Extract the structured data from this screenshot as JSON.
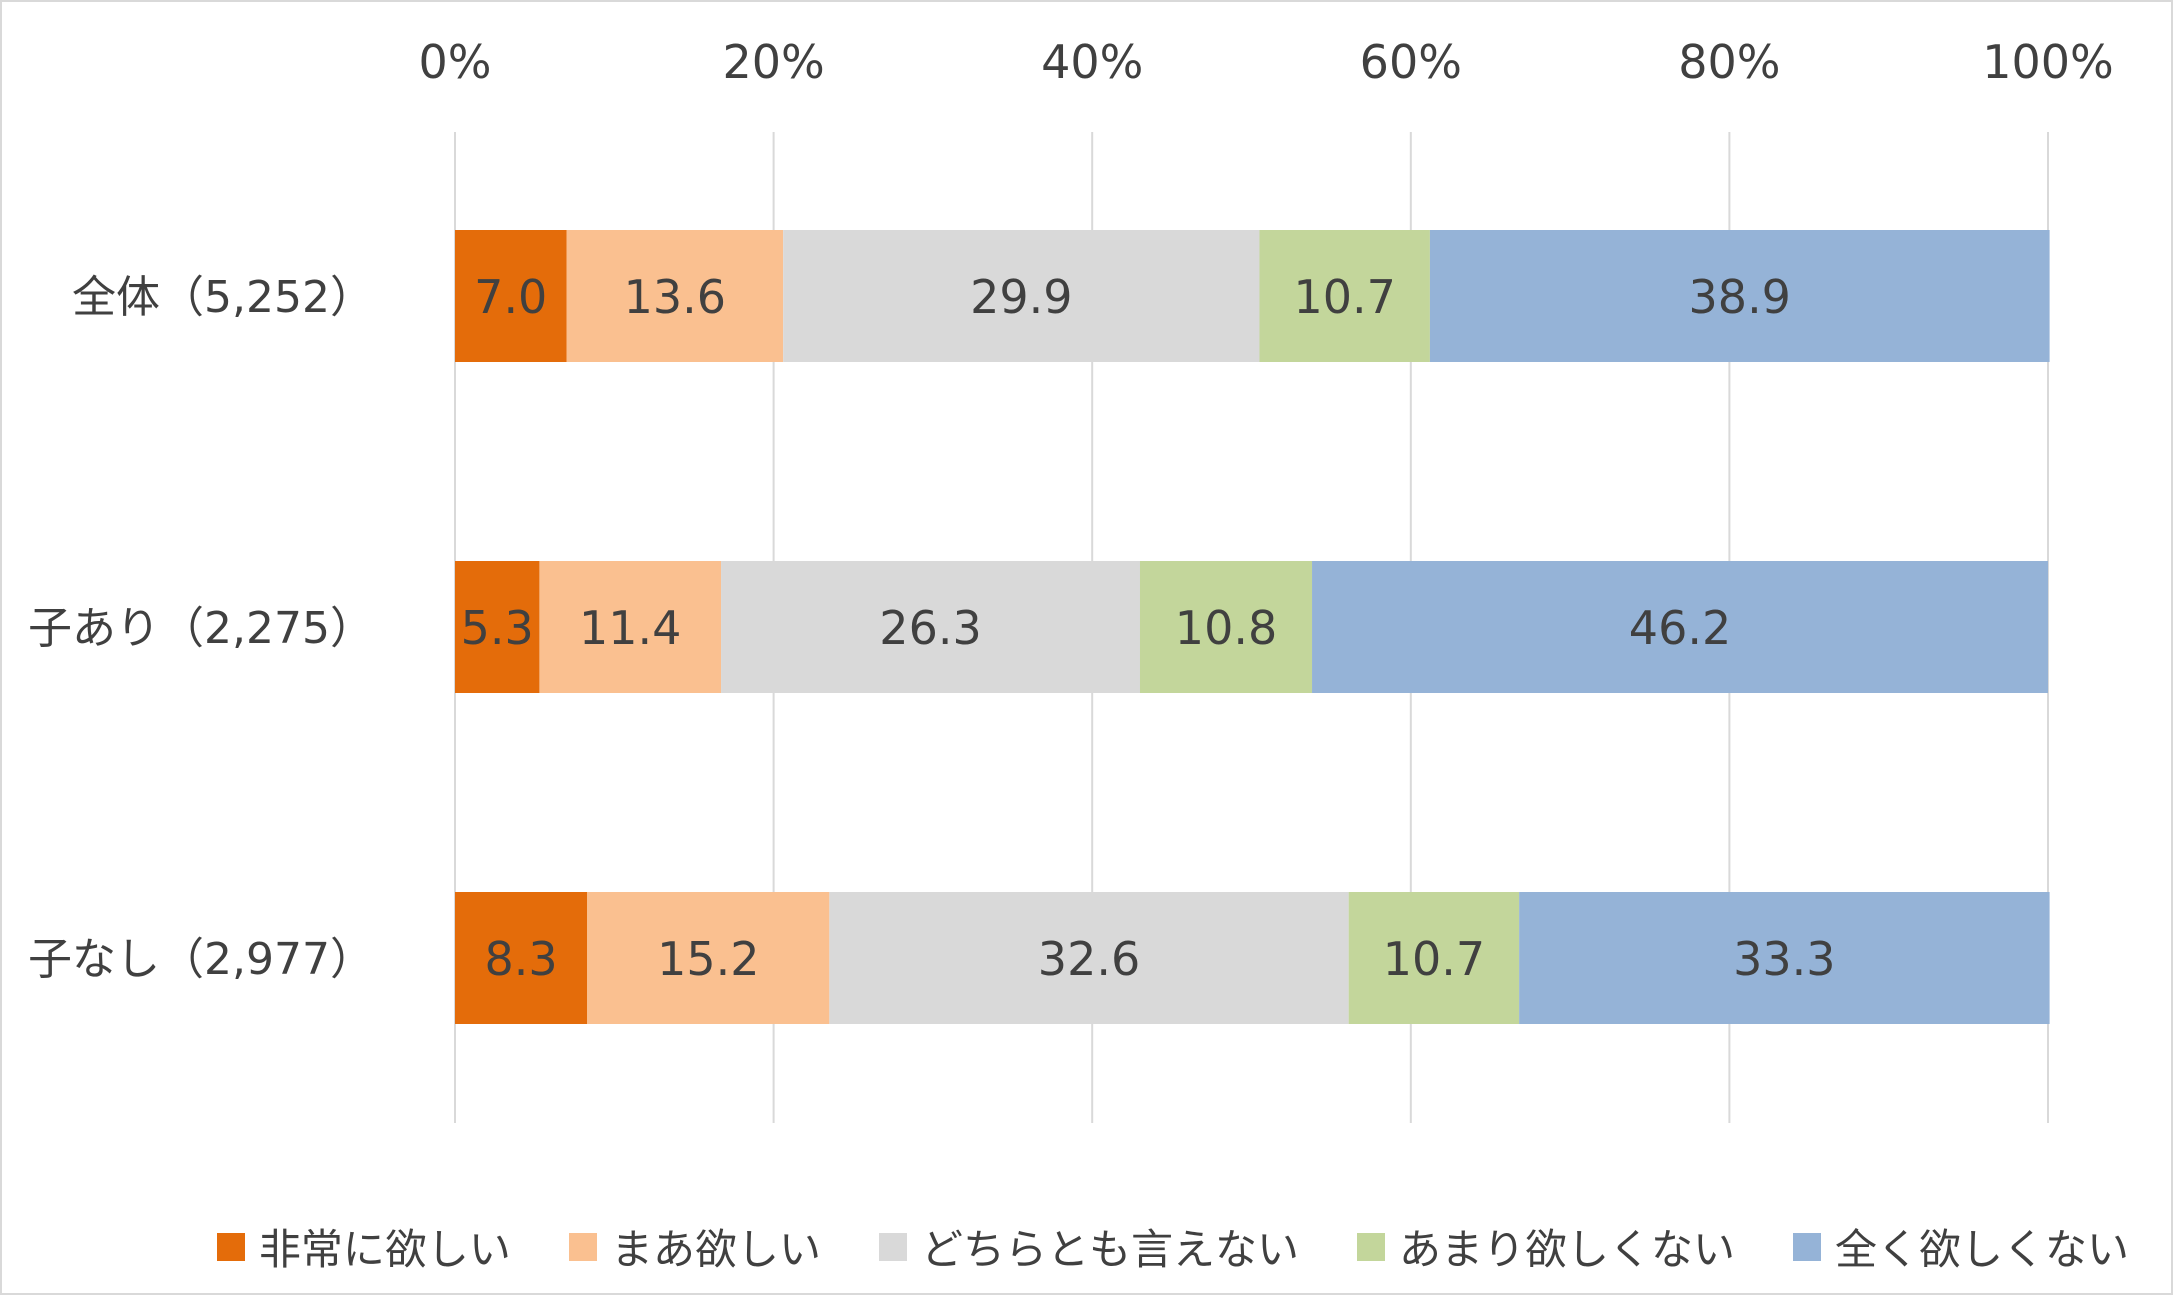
{
  "chart_data": {
    "type": "bar",
    "orientation": "horizontal",
    "stacked": true,
    "categories": [
      "全体（5,252）",
      "子あり（2,275）",
      "子なし（2,977）"
    ],
    "series": [
      {
        "name": "非常に欲しい",
        "color": "#e46c0a",
        "values": [
          7.0,
          5.3,
          8.3
        ]
      },
      {
        "name": "まあ欲しい",
        "color": "#fac090",
        "values": [
          13.6,
          11.4,
          15.2
        ]
      },
      {
        "name": "どちらとも言えない",
        "color": "#d9d9d9",
        "values": [
          29.9,
          26.3,
          32.6
        ]
      },
      {
        "name": "あまり欲しくない",
        "color": "#c3d69b",
        "values": [
          10.7,
          10.8,
          10.7
        ]
      },
      {
        "name": "全く欲しくない",
        "color": "#95b3d7",
        "values": [
          38.9,
          46.2,
          33.3
        ]
      }
    ],
    "xticks": [
      "0%",
      "20%",
      "40%",
      "60%",
      "80%",
      "100%"
    ],
    "xlim": [
      0,
      100
    ],
    "grid": true,
    "legend": "bottom",
    "title": "",
    "xlabel": "",
    "ylabel": ""
  }
}
